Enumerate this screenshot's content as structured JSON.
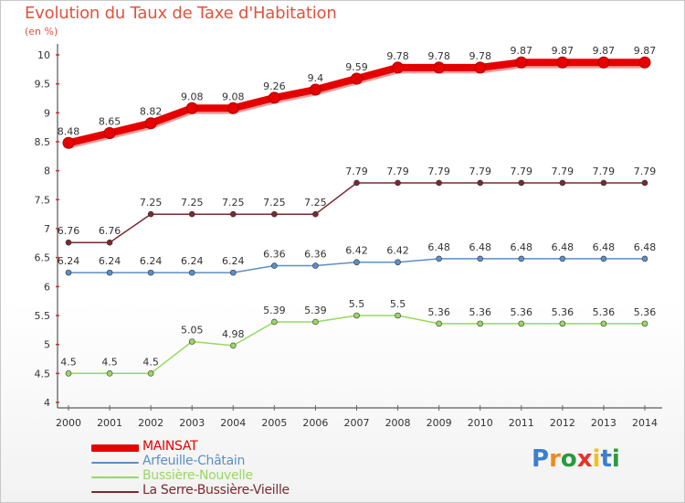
{
  "header": {
    "title": "Evolution du Taux de Taxe d'Habitation",
    "unit": "(en %)"
  },
  "chart_data": {
    "type": "line",
    "title": "Evolution du Taux de Taxe d'Habitation",
    "ylabel": "(en %)",
    "xlabel": "",
    "x": [
      "2000",
      "2001",
      "2002",
      "2003",
      "2004",
      "2005",
      "2006",
      "2007",
      "2008",
      "2009",
      "2010",
      "2011",
      "2012",
      "2013",
      "2014"
    ],
    "ylim": [
      4,
      10
    ],
    "yticks": [
      4,
      4.5,
      5,
      5.5,
      6,
      6.5,
      7,
      7.5,
      8,
      8.5,
      9,
      9.5,
      10
    ],
    "grid": false,
    "legend_position": "bottom-left",
    "series": [
      {
        "name": "MAINSAT",
        "color": "#e60000",
        "values": [
          8.48,
          8.65,
          8.82,
          9.08,
          9.08,
          9.26,
          9.4,
          9.59,
          9.78,
          9.78,
          9.78,
          9.87,
          9.87,
          9.87,
          9.87
        ],
        "labels": [
          "8.48",
          "8.65",
          "8.82",
          "9.08",
          "9.08",
          "9.26",
          "9.4",
          "9.59",
          "9.78",
          "9.78",
          "9.78",
          "9.87",
          "9.87",
          "9.87",
          "9.87"
        ]
      },
      {
        "name": "Arfeuille-Châtain",
        "color": "#5b8fc7",
        "values": [
          6.24,
          6.24,
          6.24,
          6.24,
          6.24,
          6.36,
          6.36,
          6.42,
          6.42,
          6.48,
          6.48,
          6.48,
          6.48,
          6.48,
          6.48
        ],
        "labels": [
          "6.24",
          "6.24",
          "6.24",
          "6.24",
          "6.24",
          "6.36",
          "6.36",
          "6.42",
          "6.42",
          "6.48",
          "6.48",
          "6.48",
          "6.48",
          "6.48",
          "6.48"
        ]
      },
      {
        "name": "Bussière-Nouvelle",
        "color": "#99d860",
        "values": [
          4.5,
          4.5,
          4.5,
          5.05,
          4.98,
          5.39,
          5.39,
          5.5,
          5.5,
          5.36,
          5.36,
          5.36,
          5.36,
          5.36,
          5.36
        ],
        "labels": [
          "4.5",
          "4.5",
          "4.5",
          "5.05",
          "4.98",
          "5.39",
          "5.39",
          "5.5",
          "5.5",
          "5.36",
          "5.36",
          "5.36",
          "5.36",
          "5.36",
          "5.36"
        ]
      },
      {
        "name": "La Serre-Bussière-Vieille",
        "color": "#7a2a2e",
        "values": [
          6.76,
          6.76,
          7.25,
          7.25,
          7.25,
          7.25,
          7.25,
          7.79,
          7.79,
          7.79,
          7.79,
          7.79,
          7.79,
          7.79,
          7.79
        ],
        "labels": [
          "6.76",
          "6.76",
          "7.25",
          "7.25",
          "7.25",
          "7.25",
          "7.25",
          "7.79",
          "7.79",
          "7.79",
          "7.79",
          "7.79",
          "7.79",
          "7.79",
          "7.79"
        ]
      }
    ]
  },
  "brand": {
    "letters": [
      "P",
      "r",
      "o",
      "x",
      "i",
      "t",
      "i"
    ],
    "colors": [
      "#3a7fd0",
      "#f08a1c",
      "#2a9a3c",
      "#e8312a",
      "#f0c020",
      "#3a7fd0",
      "#2a9a3c"
    ]
  }
}
